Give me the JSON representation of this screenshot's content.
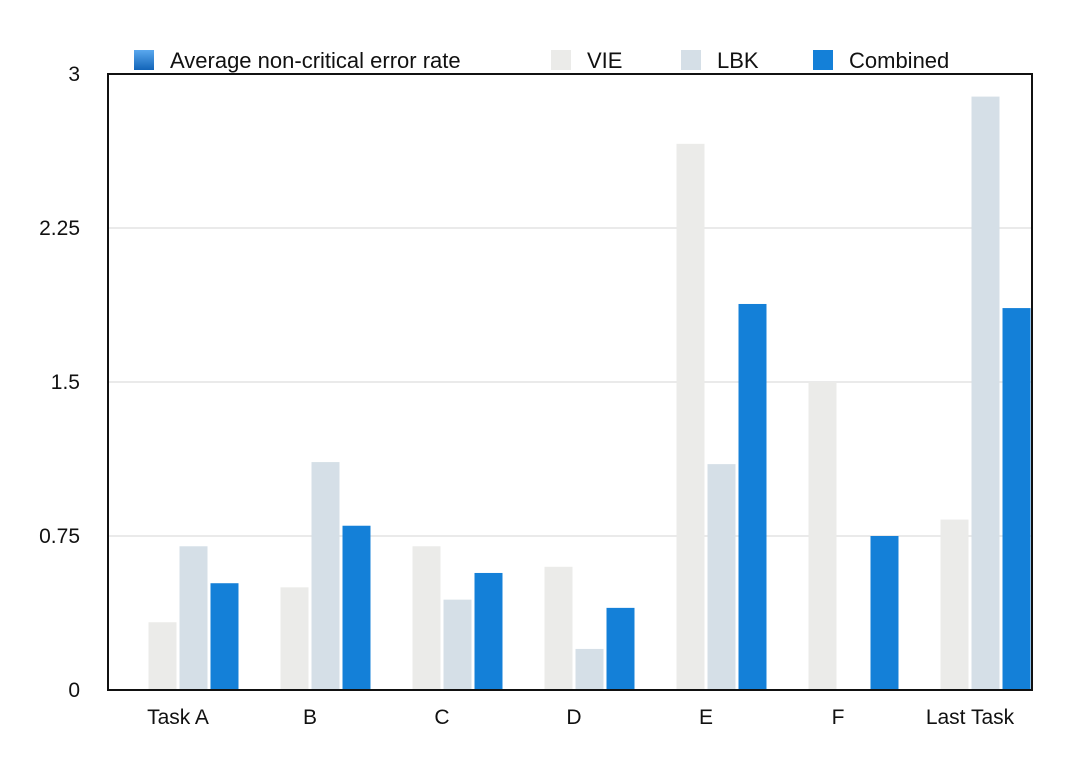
{
  "chart_data": {
    "type": "bar",
    "categories": [
      "Task A",
      "B",
      "C",
      "D",
      "E",
      "F",
      "Last Task"
    ],
    "series": [
      {
        "name": "Average non-critical error rate",
        "values": [
          0,
          0,
          0,
          0,
          0,
          0,
          0
        ],
        "color": "#1479d0"
      },
      {
        "name": "VIE",
        "values": [
          0.33,
          0.5,
          0.7,
          0.6,
          2.66,
          1.5,
          0.83
        ],
        "color": "#ebebe9"
      },
      {
        "name": "LBK",
        "values": [
          0.7,
          1.11,
          0.44,
          0.2,
          1.1,
          0,
          2.89
        ],
        "color": "#d5dfe7"
      },
      {
        "name": "Combined",
        "values": [
          0.52,
          0.8,
          0.57,
          0.4,
          1.88,
          0.75,
          1.86
        ],
        "color": "#1480d8"
      }
    ],
    "yticks": [
      "0",
      "0.75",
      "1.5",
      "2.25",
      "3"
    ],
    "ylim": [
      0,
      3
    ],
    "grid": true,
    "legend_position": "top"
  }
}
